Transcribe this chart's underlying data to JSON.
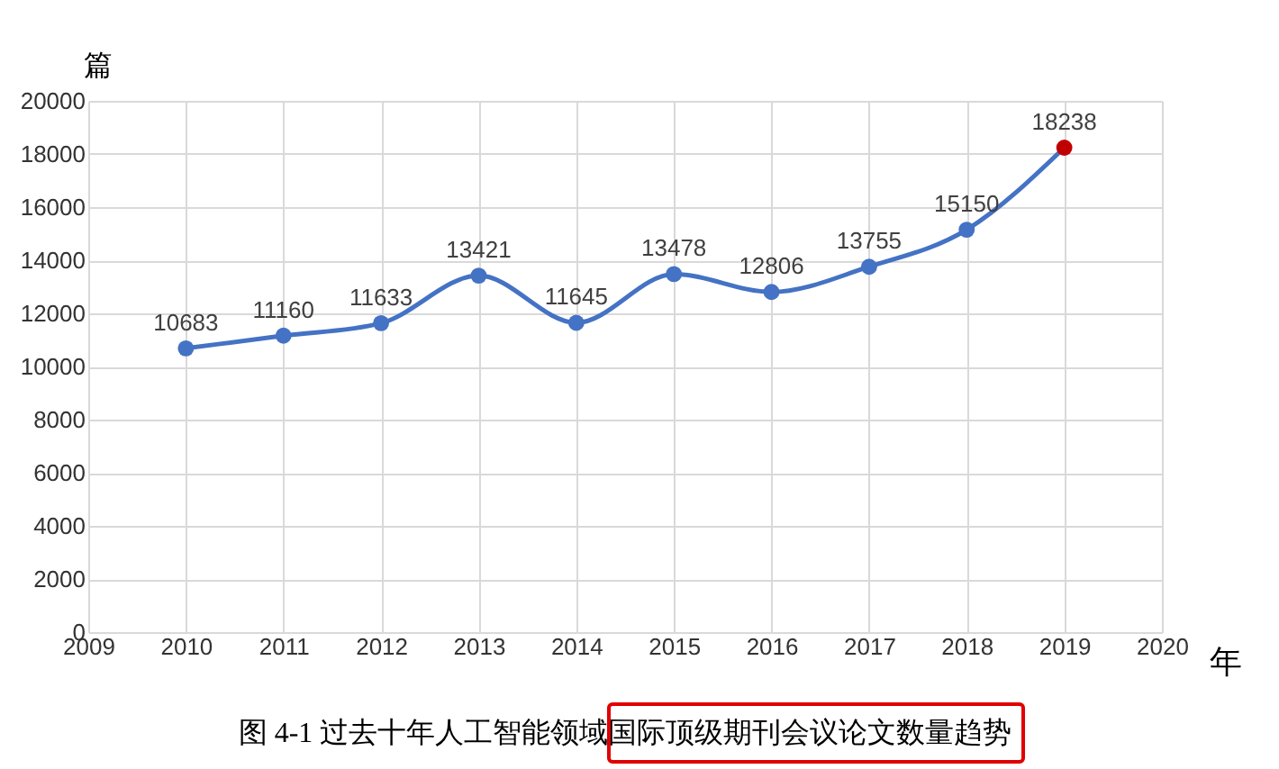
{
  "chart_data": {
    "type": "line",
    "title": "图 4-1  过去十年人工智能领域国际顶级期刊会议论文数量趋势",
    "xlabel": "年",
    "ylabel": "篇",
    "x": [
      2010,
      2011,
      2012,
      2013,
      2014,
      2015,
      2016,
      2017,
      2018,
      2019
    ],
    "series": [
      {
        "color": "#4472c4",
        "values": [
          10683,
          11160,
          11633,
          13421,
          11645,
          13478,
          12806,
          13755,
          15150,
          18238
        ]
      }
    ],
    "colors": [
      "#4472c4",
      "#4472c4",
      "#4472c4",
      "#4472c4",
      "#4472c4",
      "#4472c4",
      "#4472c4",
      "#4472c4",
      "#4472c4",
      "#c00000"
    ],
    "xlim": [
      2009,
      2020
    ],
    "xticks": [
      2009,
      2010,
      2011,
      2012,
      2013,
      2014,
      2015,
      2016,
      2017,
      2018,
      2019,
      2020
    ],
    "ylim": [
      0,
      20000
    ],
    "yticks": [
      0,
      2000,
      4000,
      6000,
      8000,
      10000,
      12000,
      14000,
      16000,
      18000,
      20000
    ],
    "grid": true,
    "marker": "circle",
    "line_style": "solid",
    "data_labels": true
  }
}
